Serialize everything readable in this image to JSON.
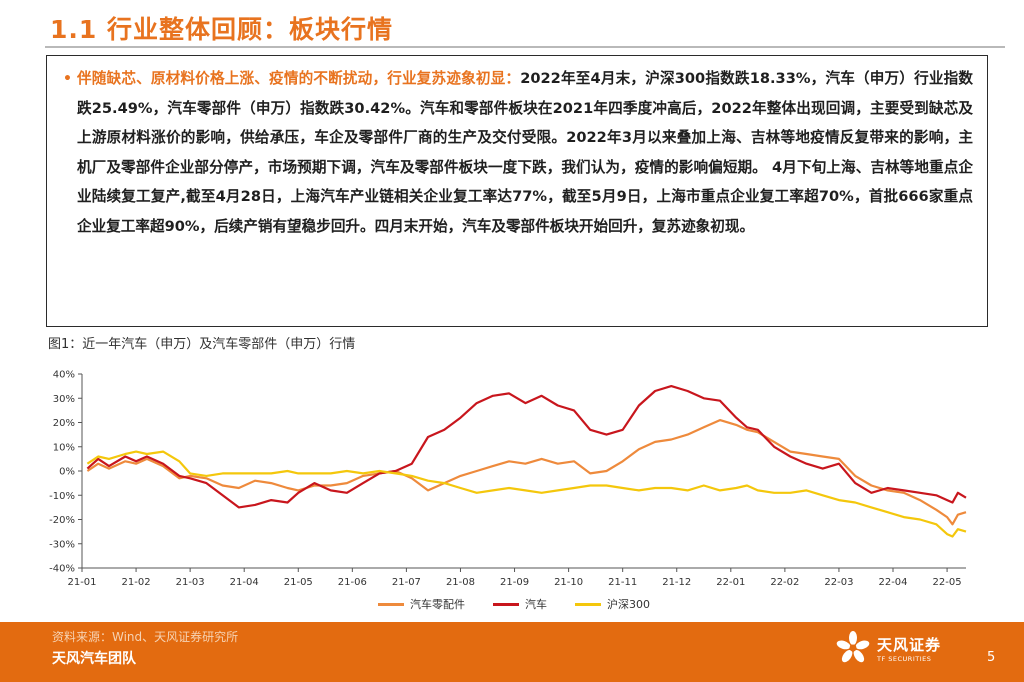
{
  "slide": {
    "title": "1.1 行业整体回顾：板块行情",
    "bullet_marker": "•",
    "highlight": "伴随缺芯、原材料价格上涨、疫情的不断扰动，行业复苏迹象初显：",
    "body": "2022年至4月末，沪深300指数跌18.33%，汽车（申万）行业指数跌25.49%，汽车零部件（申万）指数跌30.42%。汽车和零部件板块在2021年四季度冲高后，2022年整体出现回调，主要受到缺芯及上游原材料涨价的影响，供给承压，车企及零部件厂商的生产及交付受限。2022年3月以来叠加上海、吉林等地疫情反复带来的影响，主机厂及零部件企业部分停产，市场预期下调，汽车及零部件板块一度下跌，我们认为，疫情的影响偏短期。 4月下旬上海、吉林等地重点企业陆续复工复产,截至4月28日，上海汽车产业链相关企业复工率达77%，截至5月9日，上海市重点企业复工率超70%，首批666家重点企业复工率超90%，后续产销有望稳步回升。四月末开始，汽车及零部件板块开始回升，复苏迹象初现。",
    "figure_caption": "图1：近一年汽车（申万）及汽车零部件（申万）行情",
    "source": "资料来源：Wind、天风证券研究所",
    "team": "天风汽车团队",
    "logo_cn": "天风证券",
    "logo_en": "TF SECURITIES",
    "page_number": "5"
  },
  "colors": {
    "accent": "#e8731f",
    "footer": "#e36b10",
    "parts": "#ee8a3c",
    "auto": "#c8161d",
    "hs300": "#f4c70c"
  },
  "chart_data": {
    "type": "line",
    "title": "",
    "xlabel": "",
    "ylabel": "",
    "ylim": [
      -40,
      40
    ],
    "yticks": [
      -40,
      -30,
      -20,
      -10,
      0,
      10,
      20,
      30,
      40
    ],
    "ytick_labels": [
      "-40%",
      "-30%",
      "-20%",
      "-10%",
      "0%",
      "10%",
      "20%",
      "30%",
      "40%"
    ],
    "xticks": [
      "21-01",
      "21-02",
      "21-03",
      "21-04",
      "21-05",
      "21-06",
      "21-07",
      "21-08",
      "21-09",
      "21-10",
      "21-11",
      "21-12",
      "22-01",
      "22-02",
      "22-03",
      "22-04",
      "22-05"
    ],
    "x_range": [
      0,
      16.35
    ],
    "grid": false,
    "legend": "bottom",
    "series": [
      {
        "name": "汽车零配件",
        "color": "#ee8a3c",
        "points": [
          [
            0.1,
            0
          ],
          [
            0.3,
            3
          ],
          [
            0.5,
            1
          ],
          [
            0.8,
            4
          ],
          [
            1.0,
            3
          ],
          [
            1.2,
            5
          ],
          [
            1.5,
            2
          ],
          [
            1.8,
            -3
          ],
          [
            2.0,
            -2
          ],
          [
            2.3,
            -3
          ],
          [
            2.6,
            -6
          ],
          [
            2.9,
            -7
          ],
          [
            3.2,
            -4
          ],
          [
            3.5,
            -5
          ],
          [
            3.8,
            -7
          ],
          [
            4.0,
            -8
          ],
          [
            4.3,
            -6
          ],
          [
            4.6,
            -6
          ],
          [
            4.9,
            -5
          ],
          [
            5.2,
            -2
          ],
          [
            5.5,
            -1
          ],
          [
            5.8,
            0
          ],
          [
            6.1,
            -3
          ],
          [
            6.4,
            -8
          ],
          [
            6.7,
            -5
          ],
          [
            7.0,
            -2
          ],
          [
            7.3,
            0
          ],
          [
            7.6,
            2
          ],
          [
            7.9,
            4
          ],
          [
            8.2,
            3
          ],
          [
            8.5,
            5
          ],
          [
            8.8,
            3
          ],
          [
            9.1,
            4
          ],
          [
            9.4,
            -1
          ],
          [
            9.7,
            0
          ],
          [
            10.0,
            4
          ],
          [
            10.3,
            9
          ],
          [
            10.6,
            12
          ],
          [
            10.9,
            13
          ],
          [
            11.2,
            15
          ],
          [
            11.5,
            18
          ],
          [
            11.8,
            21
          ],
          [
            12.1,
            19
          ],
          [
            12.3,
            17
          ],
          [
            12.5,
            16
          ],
          [
            12.8,
            12
          ],
          [
            13.1,
            8
          ],
          [
            13.4,
            7
          ],
          [
            13.7,
            6
          ],
          [
            14.0,
            5
          ],
          [
            14.3,
            -2
          ],
          [
            14.6,
            -6
          ],
          [
            14.9,
            -8
          ],
          [
            15.2,
            -9
          ],
          [
            15.5,
            -12
          ],
          [
            15.8,
            -16
          ],
          [
            16.0,
            -19
          ],
          [
            16.1,
            -22
          ],
          [
            16.2,
            -18
          ],
          [
            16.35,
            -17
          ]
        ]
      },
      {
        "name": "汽车",
        "color": "#c8161d",
        "points": [
          [
            0.1,
            1
          ],
          [
            0.3,
            5
          ],
          [
            0.5,
            2
          ],
          [
            0.8,
            6
          ],
          [
            1.0,
            4
          ],
          [
            1.2,
            6
          ],
          [
            1.5,
            3
          ],
          [
            1.8,
            -2
          ],
          [
            2.0,
            -3
          ],
          [
            2.3,
            -5
          ],
          [
            2.6,
            -10
          ],
          [
            2.9,
            -15
          ],
          [
            3.2,
            -14
          ],
          [
            3.5,
            -12
          ],
          [
            3.8,
            -13
          ],
          [
            4.0,
            -9
          ],
          [
            4.3,
            -5
          ],
          [
            4.6,
            -8
          ],
          [
            4.9,
            -9
          ],
          [
            5.2,
            -5
          ],
          [
            5.5,
            -1
          ],
          [
            5.8,
            0
          ],
          [
            6.1,
            3
          ],
          [
            6.4,
            14
          ],
          [
            6.7,
            17
          ],
          [
            7.0,
            22
          ],
          [
            7.3,
            28
          ],
          [
            7.6,
            31
          ],
          [
            7.9,
            32
          ],
          [
            8.2,
            28
          ],
          [
            8.5,
            31
          ],
          [
            8.8,
            27
          ],
          [
            9.1,
            25
          ],
          [
            9.4,
            17
          ],
          [
            9.7,
            15
          ],
          [
            10.0,
            17
          ],
          [
            10.3,
            27
          ],
          [
            10.6,
            33
          ],
          [
            10.9,
            35
          ],
          [
            11.2,
            33
          ],
          [
            11.5,
            30
          ],
          [
            11.8,
            29
          ],
          [
            12.1,
            22
          ],
          [
            12.3,
            18
          ],
          [
            12.5,
            17
          ],
          [
            12.8,
            10
          ],
          [
            13.1,
            6
          ],
          [
            13.4,
            3
          ],
          [
            13.7,
            1
          ],
          [
            14.0,
            3
          ],
          [
            14.3,
            -5
          ],
          [
            14.6,
            -9
          ],
          [
            14.9,
            -7
          ],
          [
            15.2,
            -8
          ],
          [
            15.5,
            -9
          ],
          [
            15.8,
            -10
          ],
          [
            16.0,
            -12
          ],
          [
            16.1,
            -13
          ],
          [
            16.2,
            -9
          ],
          [
            16.35,
            -11
          ]
        ]
      },
      {
        "name": "沪深300",
        "color": "#f4c70c",
        "points": [
          [
            0.1,
            3
          ],
          [
            0.3,
            6
          ],
          [
            0.5,
            5
          ],
          [
            0.8,
            7
          ],
          [
            1.0,
            8
          ],
          [
            1.2,
            7
          ],
          [
            1.5,
            8
          ],
          [
            1.8,
            4
          ],
          [
            2.0,
            -1
          ],
          [
            2.3,
            -2
          ],
          [
            2.6,
            -1
          ],
          [
            2.9,
            -1
          ],
          [
            3.2,
            -1
          ],
          [
            3.5,
            -1
          ],
          [
            3.8,
            0
          ],
          [
            4.0,
            -1
          ],
          [
            4.3,
            -1
          ],
          [
            4.6,
            -1
          ],
          [
            4.9,
            0
          ],
          [
            5.2,
            -1
          ],
          [
            5.5,
            0
          ],
          [
            5.8,
            -1
          ],
          [
            6.1,
            -2
          ],
          [
            6.4,
            -4
          ],
          [
            6.7,
            -5
          ],
          [
            7.0,
            -7
          ],
          [
            7.3,
            -9
          ],
          [
            7.6,
            -8
          ],
          [
            7.9,
            -7
          ],
          [
            8.2,
            -8
          ],
          [
            8.5,
            -9
          ],
          [
            8.8,
            -8
          ],
          [
            9.1,
            -7
          ],
          [
            9.4,
            -6
          ],
          [
            9.7,
            -6
          ],
          [
            10.0,
            -7
          ],
          [
            10.3,
            -8
          ],
          [
            10.6,
            -7
          ],
          [
            10.9,
            -7
          ],
          [
            11.2,
            -8
          ],
          [
            11.5,
            -6
          ],
          [
            11.8,
            -8
          ],
          [
            12.1,
            -7
          ],
          [
            12.3,
            -6
          ],
          [
            12.5,
            -8
          ],
          [
            12.8,
            -9
          ],
          [
            13.1,
            -9
          ],
          [
            13.4,
            -8
          ],
          [
            13.7,
            -10
          ],
          [
            14.0,
            -12
          ],
          [
            14.3,
            -13
          ],
          [
            14.6,
            -15
          ],
          [
            14.9,
            -17
          ],
          [
            15.2,
            -19
          ],
          [
            15.5,
            -20
          ],
          [
            15.8,
            -22
          ],
          [
            16.0,
            -26
          ],
          [
            16.1,
            -27
          ],
          [
            16.2,
            -24
          ],
          [
            16.35,
            -25
          ]
        ]
      }
    ]
  }
}
